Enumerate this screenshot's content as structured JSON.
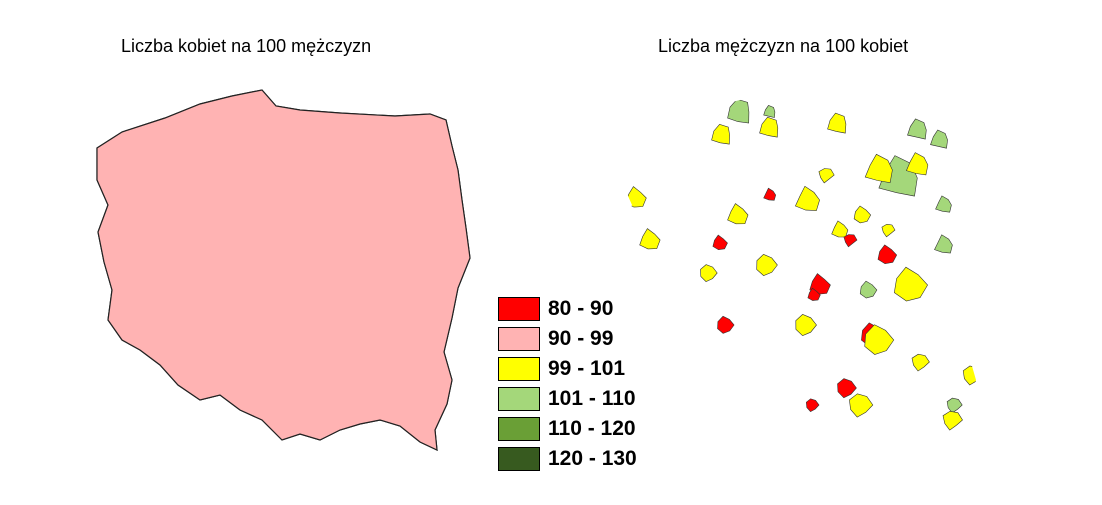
{
  "maps": [
    {
      "title": "Liczba kobiet na 100 mężczyzn",
      "base_color": "#a4d77a",
      "patch_colors": [
        "#ffff00",
        "#ffb3b3",
        "#6a9f36",
        "#375a1f"
      ]
    },
    {
      "title": "Liczba mężczyzn na 100 kobiet",
      "base_color": "#ffb3b3",
      "patch_colors": [
        "#ffff00",
        "#ff0000",
        "#a4d77a"
      ]
    }
  ],
  "legend": [
    {
      "label": "80 - 90",
      "color": "#ff0000"
    },
    {
      "label": "90 - 99",
      "color": "#ffb3b3"
    },
    {
      "label": "99 - 101",
      "color": "#ffff00"
    },
    {
      "label": "101 - 110",
      "color": "#a4d77a"
    },
    {
      "label": "110 - 120",
      "color": "#6a9f36"
    },
    {
      "label": "120 - 130",
      "color": "#375a1f"
    }
  ],
  "colors": {
    "border": "#333333",
    "outline": "#222222"
  }
}
